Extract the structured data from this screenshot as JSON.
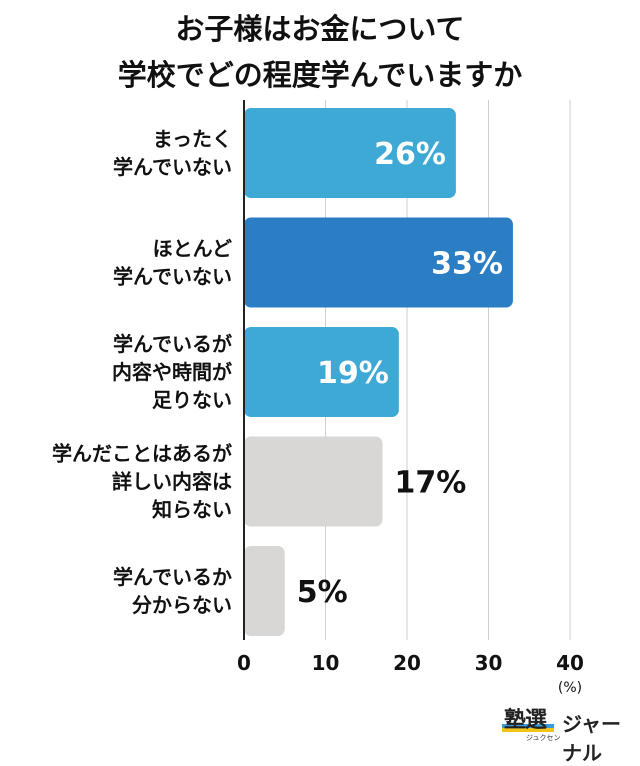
{
  "chart_data": {
    "type": "bar",
    "orientation": "horizontal",
    "title_lines": [
      "お子様はお金について",
      "学校でどの程度学んでいますか"
    ],
    "categories": [
      [
        "まったく",
        "学んでいない"
      ],
      [
        "ほとんど",
        "学んでいない"
      ],
      [
        "学んでいるが",
        "内容や時間が",
        "足りない"
      ],
      [
        "学んだことはあるが",
        "詳しい内容は",
        "知らない"
      ],
      [
        "学んでいるか",
        "分からない"
      ]
    ],
    "values": [
      26,
      33,
      19,
      17,
      5
    ],
    "value_labels": [
      "26%",
      "33%",
      "19%",
      "17%",
      "5%"
    ],
    "bar_colors": [
      "#3fa9d6",
      "#2b7dc4",
      "#3fa9d6",
      "#d9d6d6",
      "#d9d6d6"
    ],
    "value_label_colors": [
      "#ffffff",
      "#ffffff",
      "#ffffff",
      "#111111",
      "#111111"
    ],
    "xlim": [
      0,
      40
    ],
    "xticks": [
      "0",
      "10",
      "20",
      "30",
      "40"
    ],
    "unit": "(%)",
    "grid": true
  },
  "logo": {
    "kanji": "塾選",
    "sub": "ジュクセン",
    "text": "ジャーナル"
  }
}
